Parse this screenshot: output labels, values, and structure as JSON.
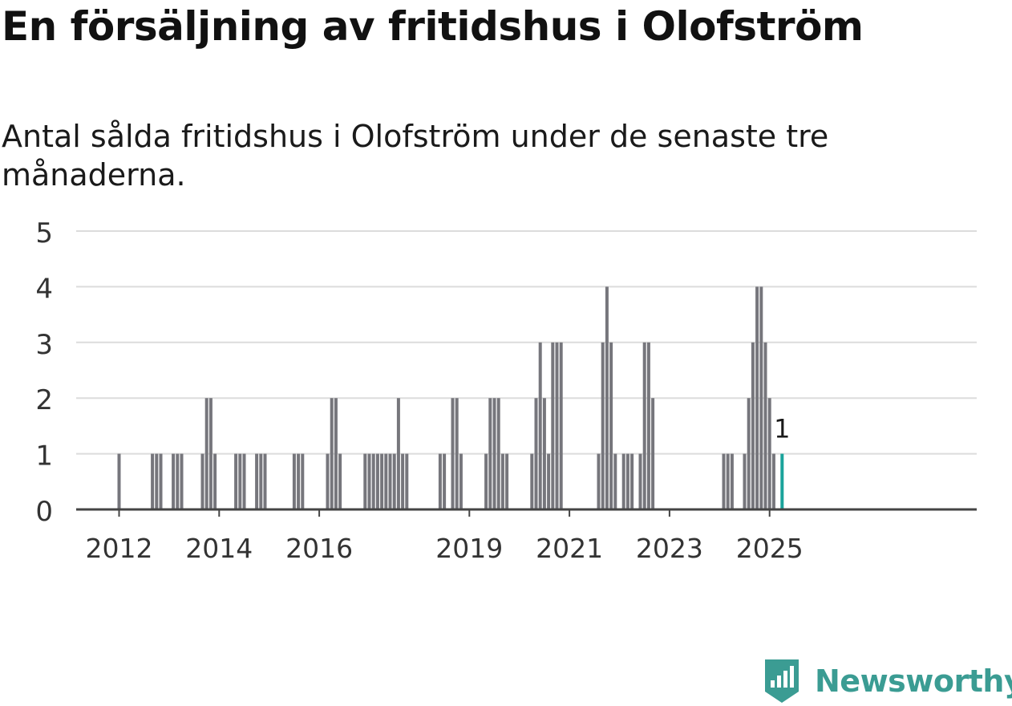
{
  "title": "En försäljning av fritidshus i Olofström",
  "subtitle": "Antal sålda fritidshus i Olofström under de senaste tre månaderna.",
  "brand": {
    "name": "Newsworthy",
    "icon": "newsworthy-logo-icon"
  },
  "colors": {
    "bar": "#76767c",
    "highlight": "#1aa39b",
    "grid": "#dcdcdc",
    "axis": "#444444"
  },
  "chart_data": {
    "type": "bar",
    "title": "En försäljning av fritidshus i Olofström",
    "subtitle": "Antal sålda fritidshus i Olofström under de senaste tre månaderna.",
    "xlabel": "",
    "ylabel": "",
    "ylim": [
      0,
      5
    ],
    "yticks": [
      0,
      1,
      2,
      3,
      4,
      5
    ],
    "x_tick_labels": [
      "2012",
      "2014",
      "2016",
      "2019",
      "2021",
      "2023",
      "2025"
    ],
    "grid": true,
    "annotations": [
      {
        "x": "2025-01",
        "text": "1"
      }
    ],
    "series": [
      {
        "values": [
          {
            "x": "2012-01",
            "y": 1
          },
          {
            "x": "2012-09",
            "y": 1
          },
          {
            "x": "2012-10",
            "y": 1
          },
          {
            "x": "2012-11",
            "y": 1
          },
          {
            "x": "2013-02",
            "y": 1
          },
          {
            "x": "2013-03",
            "y": 1
          },
          {
            "x": "2013-04",
            "y": 1
          },
          {
            "x": "2013-09",
            "y": 1
          },
          {
            "x": "2013-10",
            "y": 2
          },
          {
            "x": "2013-11",
            "y": 2
          },
          {
            "x": "2013-12",
            "y": 1
          },
          {
            "x": "2014-05",
            "y": 1
          },
          {
            "x": "2014-06",
            "y": 1
          },
          {
            "x": "2014-07",
            "y": 1
          },
          {
            "x": "2014-10",
            "y": 1
          },
          {
            "x": "2014-11",
            "y": 1
          },
          {
            "x": "2014-12",
            "y": 1
          },
          {
            "x": "2015-07",
            "y": 1
          },
          {
            "x": "2015-08",
            "y": 1
          },
          {
            "x": "2015-09",
            "y": 1
          },
          {
            "x": "2016-03",
            "y": 1
          },
          {
            "x": "2016-04",
            "y": 2
          },
          {
            "x": "2016-05",
            "y": 2
          },
          {
            "x": "2016-06",
            "y": 1
          },
          {
            "x": "2016-12",
            "y": 1
          },
          {
            "x": "2017-01",
            "y": 1
          },
          {
            "x": "2017-02",
            "y": 1
          },
          {
            "x": "2017-03",
            "y": 1
          },
          {
            "x": "2017-04",
            "y": 1
          },
          {
            "x": "2017-05",
            "y": 1
          },
          {
            "x": "2017-06",
            "y": 1
          },
          {
            "x": "2017-07",
            "y": 1
          },
          {
            "x": "2017-08",
            "y": 2
          },
          {
            "x": "2017-09",
            "y": 1
          },
          {
            "x": "2017-10",
            "y": 1
          },
          {
            "x": "2018-06",
            "y": 1
          },
          {
            "x": "2018-07",
            "y": 1
          },
          {
            "x": "2018-09",
            "y": 2
          },
          {
            "x": "2018-10",
            "y": 2
          },
          {
            "x": "2018-11",
            "y": 1
          },
          {
            "x": "2019-05",
            "y": 1
          },
          {
            "x": "2019-06",
            "y": 2
          },
          {
            "x": "2019-07",
            "y": 2
          },
          {
            "x": "2019-08",
            "y": 2
          },
          {
            "x": "2019-09",
            "y": 1
          },
          {
            "x": "2019-10",
            "y": 1
          },
          {
            "x": "2020-04",
            "y": 1
          },
          {
            "x": "2020-05",
            "y": 2
          },
          {
            "x": "2020-06",
            "y": 3
          },
          {
            "x": "2020-07",
            "y": 2
          },
          {
            "x": "2020-08",
            "y": 1
          },
          {
            "x": "2020-09",
            "y": 3
          },
          {
            "x": "2020-10",
            "y": 3
          },
          {
            "x": "2020-11",
            "y": 3
          },
          {
            "x": "2021-08",
            "y": 1
          },
          {
            "x": "2021-09",
            "y": 3
          },
          {
            "x": "2021-10",
            "y": 4
          },
          {
            "x": "2021-11",
            "y": 3
          },
          {
            "x": "2021-12",
            "y": 1
          },
          {
            "x": "2022-02",
            "y": 1
          },
          {
            "x": "2022-03",
            "y": 1
          },
          {
            "x": "2022-04",
            "y": 1
          },
          {
            "x": "2022-06",
            "y": 1
          },
          {
            "x": "2022-07",
            "y": 3
          },
          {
            "x": "2022-08",
            "y": 3
          },
          {
            "x": "2022-09",
            "y": 2
          },
          {
            "x": "2024-02",
            "y": 1
          },
          {
            "x": "2024-03",
            "y": 1
          },
          {
            "x": "2024-04",
            "y": 1
          },
          {
            "x": "2024-07",
            "y": 1
          },
          {
            "x": "2024-08",
            "y": 2
          },
          {
            "x": "2024-09",
            "y": 3
          },
          {
            "x": "2024-10",
            "y": 4
          },
          {
            "x": "2024-11",
            "y": 4
          },
          {
            "x": "2024-12",
            "y": 3
          },
          {
            "x": "2025-01",
            "y": 2
          },
          {
            "x": "2025-02",
            "y": 1
          },
          {
            "x": "2025-04",
            "y": 1,
            "highlight": true
          }
        ]
      }
    ]
  }
}
